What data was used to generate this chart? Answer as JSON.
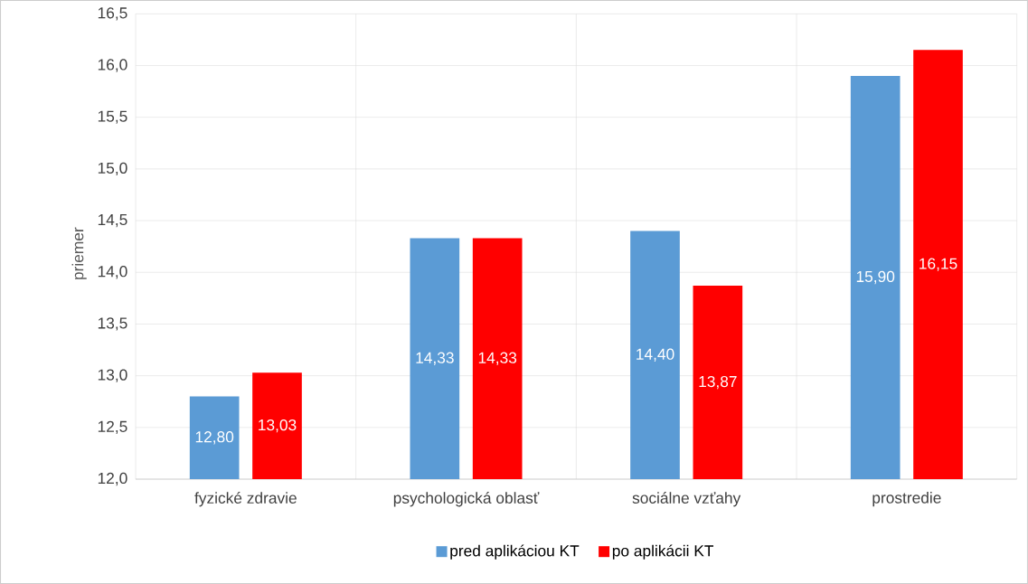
{
  "chart_data": {
    "type": "bar",
    "ylabel": "priemer",
    "categories": [
      "fyzické zdravie",
      "psychologická oblasť",
      "sociálne vzťahy",
      "prostredie"
    ],
    "series": [
      {
        "name": "pred aplikáciou KT",
        "color": "#5b9bd5",
        "values": [
          12.8,
          14.33,
          14.4,
          15.9
        ],
        "value_labels": [
          "12,80",
          "14,33",
          "14,40",
          "15,90"
        ]
      },
      {
        "name": "po aplikácii KT",
        "color": "#ff0000",
        "values": [
          13.03,
          14.33,
          13.87,
          16.15
        ],
        "value_labels": [
          "13,03",
          "14,33",
          "13,87",
          "16,15"
        ]
      }
    ],
    "ylim": [
      12,
      16.5
    ],
    "yticks": [
      {
        "value": 12,
        "label": "12,0"
      },
      {
        "value": 12.5,
        "label": "12,5"
      },
      {
        "value": 13,
        "label": "13,0"
      },
      {
        "value": 13.5,
        "label": "13,5"
      },
      {
        "value": 14,
        "label": "14,0"
      },
      {
        "value": 14.5,
        "label": "14,5"
      },
      {
        "value": 15,
        "label": "15,0"
      },
      {
        "value": 15.5,
        "label": "15,5"
      },
      {
        "value": 16,
        "label": "16,0"
      },
      {
        "value": 16.5,
        "label": "16,5"
      }
    ],
    "grid": true,
    "legend": "bottom"
  }
}
